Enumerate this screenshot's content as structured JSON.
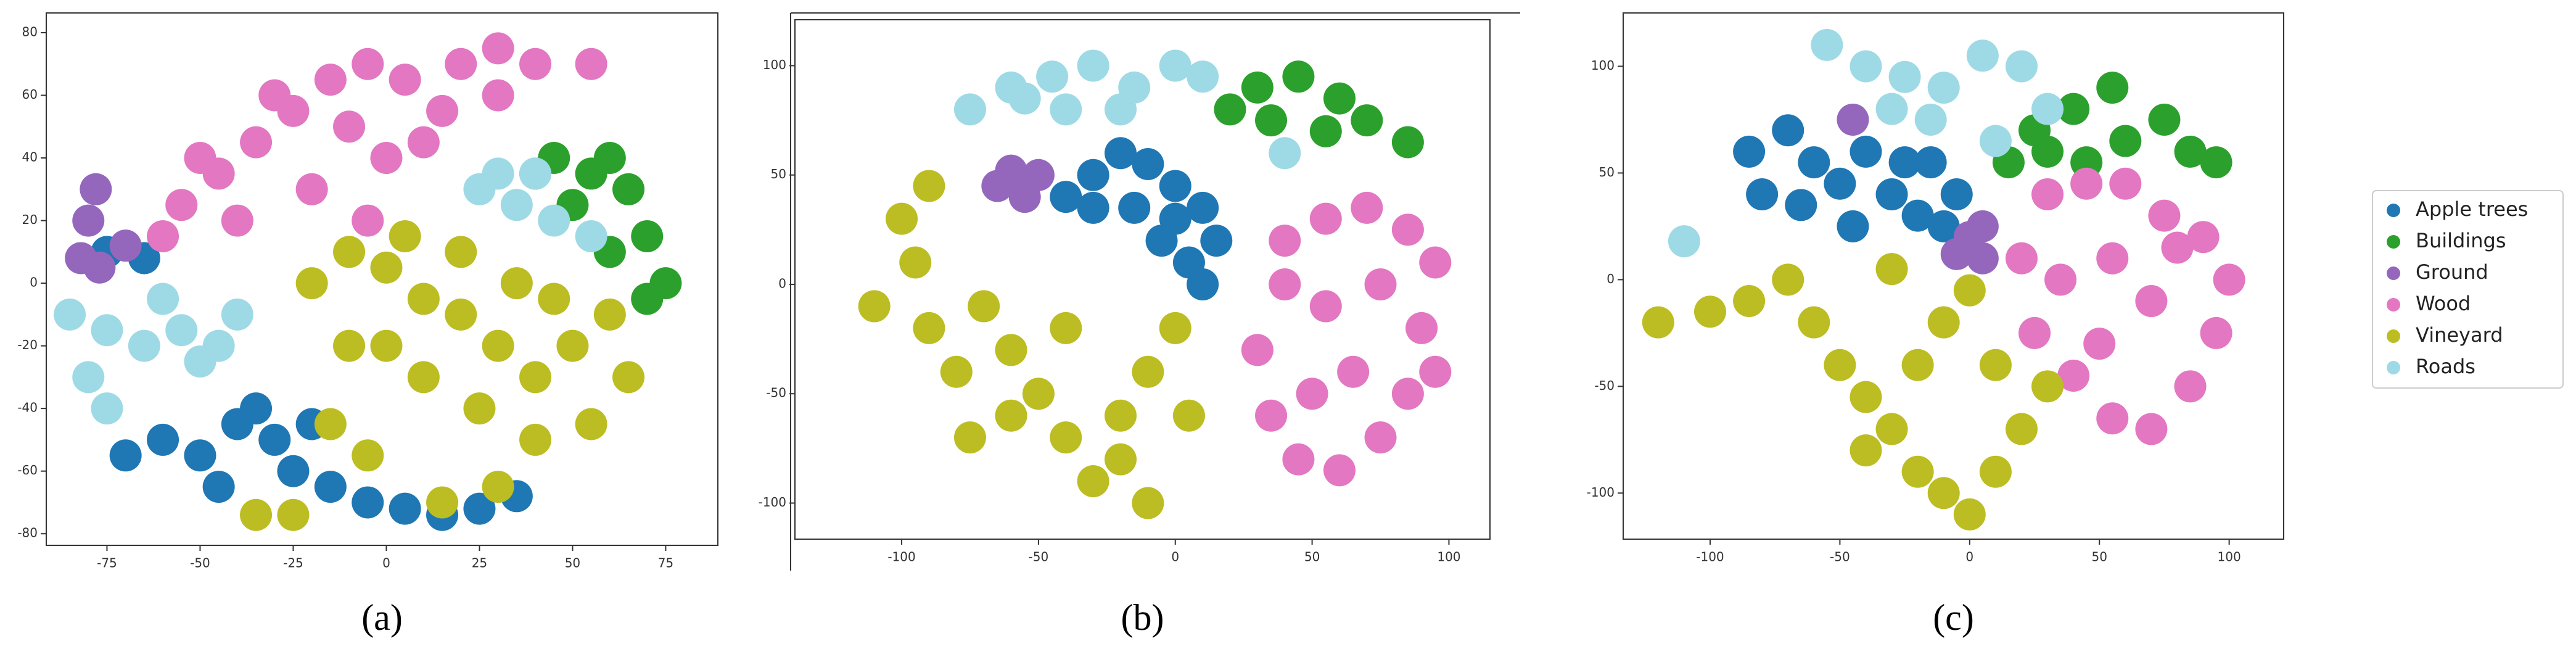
{
  "chart_data": [
    {
      "type": "scatter",
      "panel_label": "(a)",
      "xlim": [
        -91.3,
        89
      ],
      "ylim": [
        -83.7,
        86.3
      ],
      "xticks": [
        -75,
        -50,
        -25,
        0,
        25,
        50,
        75
      ],
      "yticks": [
        -80,
        -60,
        -40,
        -20,
        0,
        20,
        40,
        60,
        80
      ],
      "series": [
        {
          "name": "Apple trees",
          "color": "#1f77b4",
          "x": [
            -70,
            -60,
            -50,
            -40,
            -30,
            -25,
            -15,
            -5,
            5,
            15,
            25,
            -45,
            -35,
            -20,
            35,
            -75,
            -65
          ],
          "y": [
            -55,
            -50,
            -55,
            -45,
            -50,
            -60,
            -65,
            -70,
            -72,
            -74,
            -72,
            -65,
            -40,
            -45,
            -68,
            10,
            8
          ]
        },
        {
          "name": "Buildings",
          "color": "#2ca02c",
          "x": [
            45,
            55,
            65,
            70,
            75,
            70,
            60,
            50,
            40,
            60
          ],
          "y": [
            40,
            35,
            30,
            15,
            0,
            -5,
            10,
            25,
            35,
            40
          ]
        },
        {
          "name": "Ground",
          "color": "#9467bd",
          "x": [
            -78,
            -80,
            -82,
            -77,
            -70
          ],
          "y": [
            30,
            20,
            8,
            5,
            12
          ]
        },
        {
          "name": "Wood",
          "color": "#e377c2",
          "x": [
            -55,
            -45,
            -35,
            -25,
            -15,
            -5,
            5,
            15,
            -40,
            -20,
            0,
            -30,
            -10,
            -50,
            10,
            20,
            30,
            40,
            55,
            30,
            -5,
            -60
          ],
          "y": [
            25,
            35,
            45,
            55,
            65,
            70,
            65,
            55,
            20,
            30,
            40,
            60,
            50,
            40,
            45,
            70,
            75,
            70,
            70,
            60,
            20,
            15
          ]
        },
        {
          "name": "Vineyard",
          "color": "#bcbd22",
          "x": [
            -20,
            -10,
            0,
            10,
            20,
            30,
            40,
            50,
            60,
            65,
            55,
            40,
            25,
            10,
            0,
            -10,
            5,
            20,
            35,
            45,
            -15,
            -5,
            30,
            -35,
            -25,
            15
          ],
          "y": [
            0,
            10,
            5,
            -5,
            -10,
            -20,
            -30,
            -20,
            -10,
            -30,
            -45,
            -50,
            -40,
            -30,
            -20,
            -20,
            15,
            10,
            0,
            -5,
            -45,
            -55,
            -65,
            -74,
            -74,
            -70
          ]
        },
        {
          "name": "Roads",
          "color": "#9edae5",
          "x": [
            -85,
            -75,
            -65,
            -55,
            -45,
            -40,
            -80,
            -75,
            -60,
            -50,
            25,
            35,
            45,
            55,
            40,
            30
          ],
          "y": [
            -10,
            -15,
            -20,
            -15,
            -20,
            -10,
            -30,
            -40,
            -5,
            -25,
            30,
            25,
            20,
            15,
            35,
            35
          ]
        }
      ]
    },
    {
      "type": "scatter",
      "panel_label": "(b)",
      "xlim": [
        -139,
        115
      ],
      "ylim": [
        -116.5,
        121
      ],
      "xticks": [
        -100,
        -50,
        0,
        50,
        100
      ],
      "yticks": [
        -100,
        -50,
        0,
        50,
        100
      ],
      "series": [
        {
          "name": "Apple trees",
          "color": "#1f77b4",
          "x": [
            -40,
            -30,
            -20,
            -10,
            0,
            10,
            15,
            5,
            -5,
            -15,
            -30,
            0,
            10
          ],
          "y": [
            40,
            50,
            60,
            55,
            45,
            35,
            20,
            10,
            20,
            35,
            35,
            30,
            0
          ]
        },
        {
          "name": "Buildings",
          "color": "#2ca02c",
          "x": [
            20,
            35,
            45,
            60,
            70,
            85,
            30,
            55
          ],
          "y": [
            80,
            75,
            95,
            85,
            75,
            65,
            90,
            70
          ]
        },
        {
          "name": "Ground",
          "color": "#9467bd",
          "x": [
            -65,
            -55,
            -60,
            -50
          ],
          "y": [
            45,
            40,
            52,
            50
          ]
        },
        {
          "name": "Wood",
          "color": "#e377c2",
          "x": [
            40,
            55,
            70,
            85,
            95,
            90,
            85,
            75,
            60,
            45,
            35,
            30,
            40,
            55,
            65,
            75,
            50,
            95
          ],
          "y": [
            20,
            30,
            35,
            25,
            10,
            -20,
            -50,
            -70,
            -85,
            -80,
            -60,
            -30,
            0,
            -10,
            -40,
            0,
            -50,
            -40
          ]
        },
        {
          "name": "Vineyard",
          "color": "#bcbd22",
          "x": [
            -100,
            -95,
            -110,
            -90,
            -80,
            -70,
            -60,
            -50,
            -40,
            -30,
            -20,
            -10,
            0,
            5,
            -20,
            -60,
            -40,
            -90,
            -75,
            -10
          ],
          "y": [
            30,
            10,
            -10,
            -20,
            -40,
            -10,
            -30,
            -50,
            -70,
            -90,
            -60,
            -40,
            -20,
            -60,
            -80,
            -60,
            -20,
            45,
            -70,
            -100
          ]
        },
        {
          "name": "Roads",
          "color": "#9edae5",
          "x": [
            -75,
            -60,
            -45,
            -30,
            -15,
            0,
            -40,
            -20,
            10,
            -55,
            40
          ],
          "y": [
            80,
            90,
            95,
            100,
            90,
            100,
            80,
            80,
            95,
            85,
            60
          ]
        }
      ]
    },
    {
      "type": "scatter",
      "panel_label": "(c)",
      "legend": "right",
      "xlim": [
        -133.5,
        121
      ],
      "ylim": [
        -121.6,
        125
      ],
      "xticks": [
        -100,
        -50,
        0,
        50,
        100
      ],
      "yticks": [
        -100,
        -50,
        0,
        50,
        100
      ],
      "series": [
        {
          "name": "Apple trees",
          "color": "#1f77b4",
          "x": [
            -85,
            -70,
            -60,
            -50,
            -40,
            -30,
            -20,
            -10,
            -5,
            -80,
            -65,
            -45,
            -25,
            -15
          ],
          "y": [
            60,
            70,
            55,
            45,
            60,
            40,
            30,
            25,
            40,
            40,
            35,
            25,
            55,
            55
          ]
        },
        {
          "name": "Buildings",
          "color": "#2ca02c",
          "x": [
            15,
            25,
            40,
            55,
            60,
            75,
            85,
            30,
            45,
            95
          ],
          "y": [
            55,
            70,
            80,
            90,
            65,
            75,
            60,
            60,
            55,
            55
          ]
        },
        {
          "name": "Ground",
          "color": "#9467bd",
          "x": [
            -45,
            0,
            5,
            -5,
            5
          ],
          "y": [
            75,
            20,
            10,
            12,
            25
          ]
        },
        {
          "name": "Wood",
          "color": "#e377c2",
          "x": [
            20,
            30,
            45,
            60,
            75,
            90,
            100,
            95,
            85,
            70,
            55,
            40,
            25,
            35,
            55,
            70,
            80,
            50
          ],
          "y": [
            10,
            40,
            45,
            45,
            30,
            20,
            0,
            -25,
            -50,
            -70,
            -65,
            -45,
            -25,
            0,
            10,
            -10,
            15,
            -30
          ]
        },
        {
          "name": "Vineyard",
          "color": "#bcbd22",
          "x": [
            -120,
            -100,
            -85,
            -70,
            -60,
            -50,
            -40,
            -30,
            -20,
            -10,
            0,
            10,
            20,
            30,
            -10,
            0,
            -20,
            10,
            -40,
            -30
          ],
          "y": [
            -20,
            -15,
            -10,
            0,
            -20,
            -40,
            -55,
            -70,
            -90,
            -100,
            -110,
            -90,
            -70,
            -50,
            -20,
            -5,
            -40,
            -40,
            -80,
            5
          ]
        },
        {
          "name": "Roads",
          "color": "#9edae5",
          "x": [
            -55,
            -40,
            -25,
            -10,
            5,
            20,
            30,
            -30,
            -15,
            10,
            -110
          ],
          "y": [
            110,
            100,
            95,
            90,
            105,
            100,
            80,
            80,
            75,
            65,
            18
          ]
        }
      ]
    }
  ]
}
